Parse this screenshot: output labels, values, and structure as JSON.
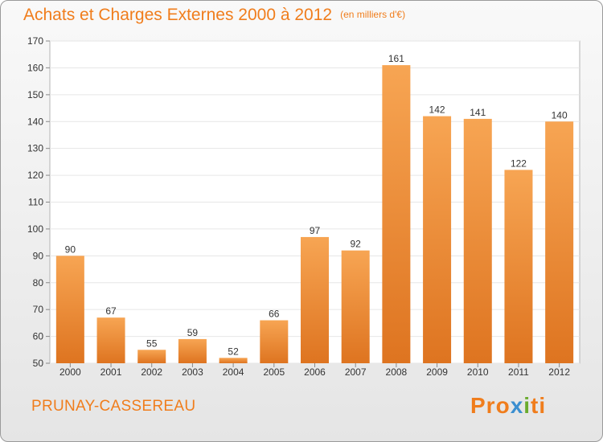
{
  "header": {
    "title": "Achats et Charges Externes 2000 à 2012",
    "subtitle": "(en milliers d'€)"
  },
  "footer": {
    "city": "PRUNAY-CASSEREAU",
    "logo": "Proxiti"
  },
  "colors": {
    "accent": "#f07d1c",
    "bar_light": "#f7a553",
    "bar_dark": "#de7420"
  },
  "chart_data": {
    "type": "bar",
    "title": "Achats et Charges Externes 2000 à 2012",
    "subtitle": "(en milliers d'€)",
    "xlabel": "",
    "ylabel": "",
    "categories": [
      "2000",
      "2001",
      "2002",
      "2003",
      "2004",
      "2005",
      "2006",
      "2007",
      "2008",
      "2009",
      "2010",
      "2011",
      "2012"
    ],
    "values": [
      90,
      67,
      55,
      59,
      52,
      66,
      97,
      92,
      161,
      142,
      141,
      122,
      140
    ],
    "ylim": [
      50,
      170
    ],
    "yticks": [
      50,
      60,
      70,
      80,
      90,
      100,
      110,
      120,
      130,
      140,
      150,
      160,
      170
    ],
    "grid": true,
    "data_labels": true
  }
}
